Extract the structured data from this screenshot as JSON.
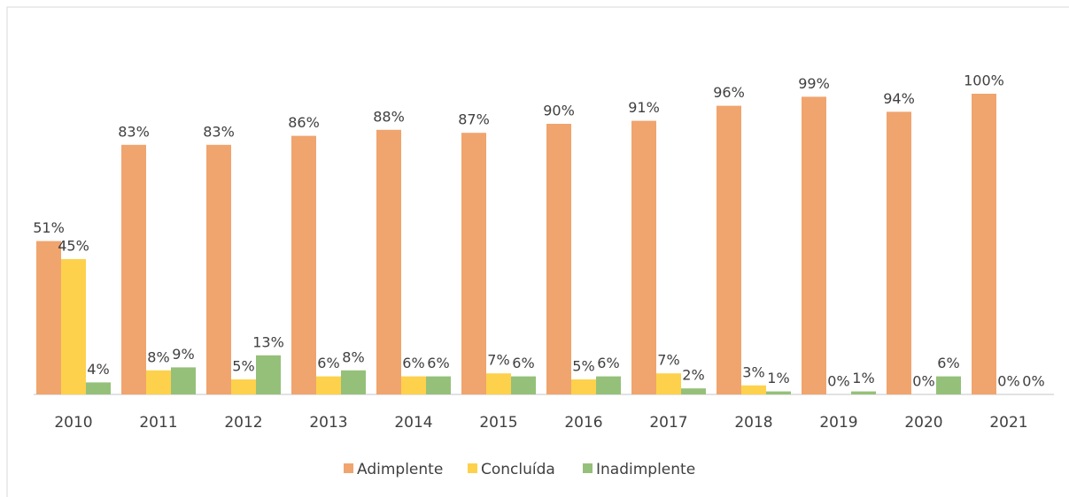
{
  "chart_data": {
    "type": "bar",
    "categories": [
      "2010",
      "2011",
      "2012",
      "2013",
      "2014",
      "2015",
      "2016",
      "2017",
      "2018",
      "2019",
      "2020",
      "2021"
    ],
    "series": [
      {
        "name": "Adimplente",
        "color": "#f0a46e",
        "values": [
          51,
          83,
          83,
          86,
          88,
          87,
          90,
          91,
          96,
          99,
          94,
          100
        ],
        "value_labels": [
          "51%",
          "83%",
          "83%",
          "86%",
          "88%",
          "87%",
          "90%",
          "91%",
          "96%",
          "99%",
          "94%",
          "100%"
        ]
      },
      {
        "name": "Concluída",
        "color": "#fdd14c",
        "values": [
          45,
          8,
          5,
          6,
          6,
          7,
          5,
          7,
          3,
          0,
          0,
          0
        ],
        "value_labels": [
          "45%",
          "8%",
          "5%",
          "6%",
          "6%",
          "7%",
          "5%",
          "7%",
          "3%",
          "0%",
          "0%",
          "0%"
        ]
      },
      {
        "name": "Inadimplente",
        "color": "#95c07a",
        "values": [
          4,
          9,
          13,
          8,
          6,
          6,
          6,
          2,
          1,
          1,
          6,
          0
        ],
        "value_labels": [
          "4%",
          "9%",
          "13%",
          "8%",
          "6%",
          "6%",
          "6%",
          "2%",
          "1%",
          "1%",
          "6%",
          "0%"
        ]
      }
    ]
  }
}
